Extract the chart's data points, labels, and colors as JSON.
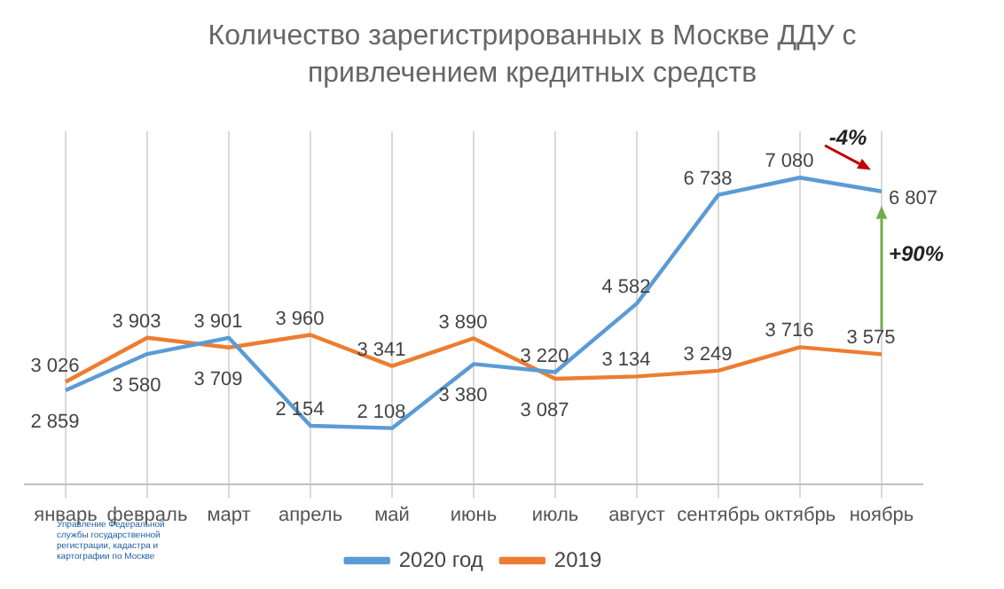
{
  "chart_data": {
    "type": "line",
    "title": "Количество зарегистрированных в Москве ДДУ с привлечением кредитных средств",
    "categories": [
      "январь",
      "февраль",
      "март",
      "апрель",
      "май",
      "июнь",
      "июль",
      "август",
      "сентябрь",
      "октябрь",
      "ноябрь"
    ],
    "series": [
      {
        "name": "2020 год",
        "color": "#5b9bd5",
        "values": [
          2859,
          3580,
          3901,
          2154,
          2108,
          3380,
          3220,
          4582,
          6738,
          7080,
          6807
        ]
      },
      {
        "name": "2019",
        "color": "#ed7d31",
        "values": [
          3026,
          3903,
          3709,
          3960,
          3341,
          3890,
          3087,
          3134,
          3249,
          3716,
          3575
        ]
      }
    ],
    "data_labels": true,
    "grid": "x",
    "legend": "bottom",
    "marker": "none",
    "line_style": "solid",
    "tick_labels": "x",
    "annotations": [
      "-4%",
      "+90%",
      "Управление Федеральной службы государственной регистрации, кадастра и картографии по Москве"
    ]
  }
}
